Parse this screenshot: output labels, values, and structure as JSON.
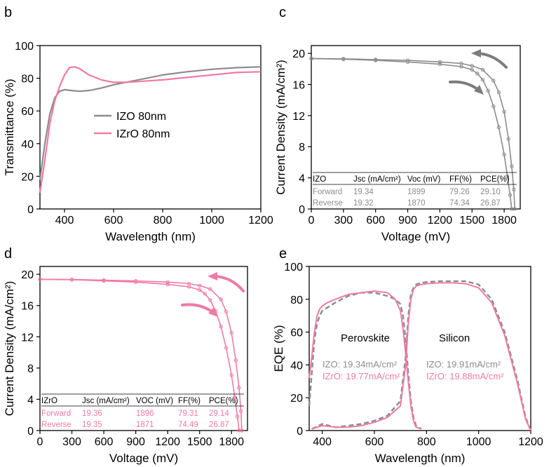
{
  "colors": {
    "gray": "#8c8c8c",
    "pink": "#f07aa6",
    "dark": "#6f6f6f"
  },
  "chart_data": [
    {
      "panel": "b",
      "type": "line",
      "xlabel": "Wavelength (nm)",
      "ylabel": "Transmittance (%)",
      "xlim": [
        300,
        1200
      ],
      "ylim": [
        0,
        100
      ],
      "xticks": [
        400,
        600,
        800,
        1000,
        1200
      ],
      "yticks": [
        0,
        20,
        40,
        60,
        80,
        100
      ],
      "legend_position": "center-left",
      "series": [
        {
          "name": "IZO 80nm",
          "color": "gray",
          "x": [
            300,
            320,
            340,
            360,
            380,
            400,
            430,
            460,
            500,
            550,
            600,
            650,
            700,
            750,
            800,
            900,
            1000,
            1100,
            1200
          ],
          "y": [
            18,
            40,
            58,
            68,
            72,
            73,
            72.5,
            72,
            72.5,
            74,
            76,
            77.5,
            79,
            80.5,
            82,
            84,
            85.5,
            86.5,
            87
          ]
        },
        {
          "name": "IZrO 80nm",
          "color": "pink",
          "x": [
            300,
            320,
            340,
            360,
            380,
            400,
            420,
            440,
            460,
            480,
            500,
            550,
            600,
            650,
            700,
            800,
            900,
            1000,
            1100,
            1200
          ],
          "y": [
            10,
            30,
            52,
            66,
            75,
            82,
            86.5,
            87,
            86,
            84,
            82,
            79,
            77.5,
            77.5,
            78,
            79,
            80.5,
            82,
            83.5,
            84
          ]
        }
      ]
    },
    {
      "panel": "c",
      "type": "line",
      "xlabel": "Voltage (mV)",
      "ylabel": "Current Density (mA/cm²)",
      "xlim": [
        0,
        1950
      ],
      "ylim": [
        0,
        21
      ],
      "xticks": [
        0,
        300,
        600,
        900,
        1200,
        1500,
        1800
      ],
      "yticks": [
        0,
        4,
        8,
        12,
        16,
        20
      ],
      "series": [
        {
          "name": "Forward",
          "color": "gray",
          "x": [
            0,
            300,
            600,
            900,
            1200,
            1400,
            1500,
            1600,
            1700,
            1750,
            1800,
            1840,
            1870,
            1890,
            1899
          ],
          "y": [
            19.34,
            19.3,
            19.2,
            19.1,
            18.9,
            18.7,
            18.4,
            17.9,
            16.5,
            15,
            12.5,
            9,
            5.5,
            2.5,
            0
          ]
        },
        {
          "name": "Reverse",
          "color": "gray",
          "x": [
            0,
            300,
            600,
            900,
            1200,
            1400,
            1500,
            1550,
            1600,
            1650,
            1700,
            1750,
            1800,
            1830,
            1855,
            1870
          ],
          "y": [
            19.32,
            19.25,
            19.1,
            18.9,
            18.6,
            18.3,
            17.9,
            17.4,
            16.6,
            15.2,
            13.2,
            10.5,
            7,
            4.2,
            1.8,
            0
          ]
        }
      ],
      "table": {
        "header": [
          "IZO",
          "Jsc (mA/cm²)",
          "Voc (mV)",
          "FF(%)",
          "PCE(%)"
        ],
        "rows": [
          [
            "Forward",
            "19.34",
            "1899",
            "79.26",
            "29.10"
          ],
          [
            "Reverse",
            "19.32",
            "1870",
            "74.34",
            "26.87"
          ]
        ]
      }
    },
    {
      "panel": "d",
      "type": "line",
      "xlabel": "Voltage (mV)",
      "ylabel": "Current Density (mA/cm²)",
      "xlim": [
        0,
        1950
      ],
      "ylim": [
        0,
        21
      ],
      "xticks": [
        0,
        300,
        600,
        900,
        1200,
        1500,
        1800
      ],
      "yticks": [
        0,
        4,
        8,
        12,
        16,
        20
      ],
      "series": [
        {
          "name": "Forward",
          "color": "pink",
          "x": [
            0,
            300,
            600,
            900,
            1200,
            1400,
            1500,
            1600,
            1700,
            1750,
            1800,
            1840,
            1870,
            1888,
            1896
          ],
          "y": [
            19.36,
            19.33,
            19.25,
            19.15,
            19.0,
            18.8,
            18.55,
            18.1,
            16.8,
            15.2,
            12.5,
            9,
            5.5,
            2.5,
            0
          ]
        },
        {
          "name": "Reverse",
          "color": "pink",
          "x": [
            0,
            300,
            600,
            900,
            1200,
            1400,
            1500,
            1550,
            1600,
            1650,
            1700,
            1750,
            1800,
            1830,
            1855,
            1871
          ],
          "y": [
            19.35,
            19.3,
            19.15,
            19.0,
            18.7,
            18.4,
            18.0,
            17.5,
            16.7,
            15.3,
            13.3,
            10.6,
            7.1,
            4.3,
            1.8,
            0
          ]
        }
      ],
      "table": {
        "header": [
          "IZrO",
          "Jsc (mA/cm²)",
          "VOC (mV)",
          "FF(%)",
          "PCE(%)"
        ],
        "rows": [
          [
            "Forward",
            "19.36",
            "1896",
            "79.31",
            "29.14"
          ],
          [
            "Reverse",
            "19.35",
            "1871",
            "74.49",
            "26.87"
          ]
        ]
      }
    },
    {
      "panel": "e",
      "type": "line",
      "xlabel": "Wavelength (nm)",
      "ylabel": "EQE (%)",
      "xlim": [
        350,
        1200
      ],
      "ylim": [
        0,
        100
      ],
      "xticks": [
        400,
        600,
        800,
        1000,
        1200
      ],
      "yticks": [
        0,
        20,
        40,
        60,
        80,
        100
      ],
      "labels": [
        "Perovskite",
        "Silicon"
      ],
      "annotations": [
        {
          "text": "IZO: 19.34mA/cm²",
          "color": "gray"
        },
        {
          "text": "IZrO: 19.77mA/cm²",
          "color": "pink"
        },
        {
          "text": "IZO: 19.91mA/cm²",
          "color": "gray"
        },
        {
          "text": "IZrO: 19.88mA/cm²",
          "color": "pink"
        }
      ],
      "series": [
        {
          "name": "IZO perovskite",
          "color": "gray",
          "dashed": true,
          "x": [
            350,
            360,
            370,
            380,
            390,
            400,
            420,
            450,
            500,
            550,
            600,
            650,
            680,
            700,
            710,
            720,
            730,
            740,
            750,
            760,
            780
          ],
          "y": [
            15,
            35,
            55,
            65,
            70,
            73,
            75,
            78,
            82,
            84,
            84,
            82,
            80,
            77,
            70,
            55,
            35,
            18,
            8,
            3,
            1
          ]
        },
        {
          "name": "IZrO perovskite",
          "color": "pink",
          "x": [
            350,
            360,
            370,
            380,
            390,
            400,
            420,
            450,
            500,
            550,
            600,
            650,
            680,
            700,
            710,
            720,
            730,
            740,
            750,
            760,
            780
          ],
          "y": [
            32,
            45,
            60,
            70,
            74,
            76,
            78,
            80,
            83,
            84,
            85,
            84,
            80,
            73,
            62,
            47,
            30,
            15,
            6,
            2,
            1
          ]
        },
        {
          "name": "IZO silicon",
          "color": "gray",
          "dashed": true,
          "x": [
            360,
            400,
            450,
            500,
            550,
            600,
            650,
            700,
            720,
            730,
            740,
            750,
            760,
            780,
            800,
            850,
            900,
            950,
            1000,
            1050,
            1100,
            1150,
            1180,
            1200
          ],
          "y": [
            1,
            4,
            2,
            3,
            4,
            6,
            9,
            18,
            45,
            70,
            83,
            87,
            89,
            90,
            90.5,
            91,
            91,
            91,
            89,
            80,
            60,
            30,
            8,
            0
          ]
        },
        {
          "name": "IZrO silicon",
          "color": "pink",
          "x": [
            360,
            400,
            450,
            500,
            550,
            600,
            650,
            700,
            720,
            730,
            740,
            750,
            760,
            780,
            800,
            850,
            900,
            950,
            1000,
            1050,
            1100,
            1150,
            1180,
            1200
          ],
          "y": [
            1,
            3,
            2,
            2,
            3,
            5,
            8,
            15,
            40,
            65,
            80,
            86,
            88,
            89,
            89.5,
            90,
            90,
            89.5,
            87,
            78,
            58,
            28,
            7,
            0
          ]
        }
      ]
    }
  ]
}
